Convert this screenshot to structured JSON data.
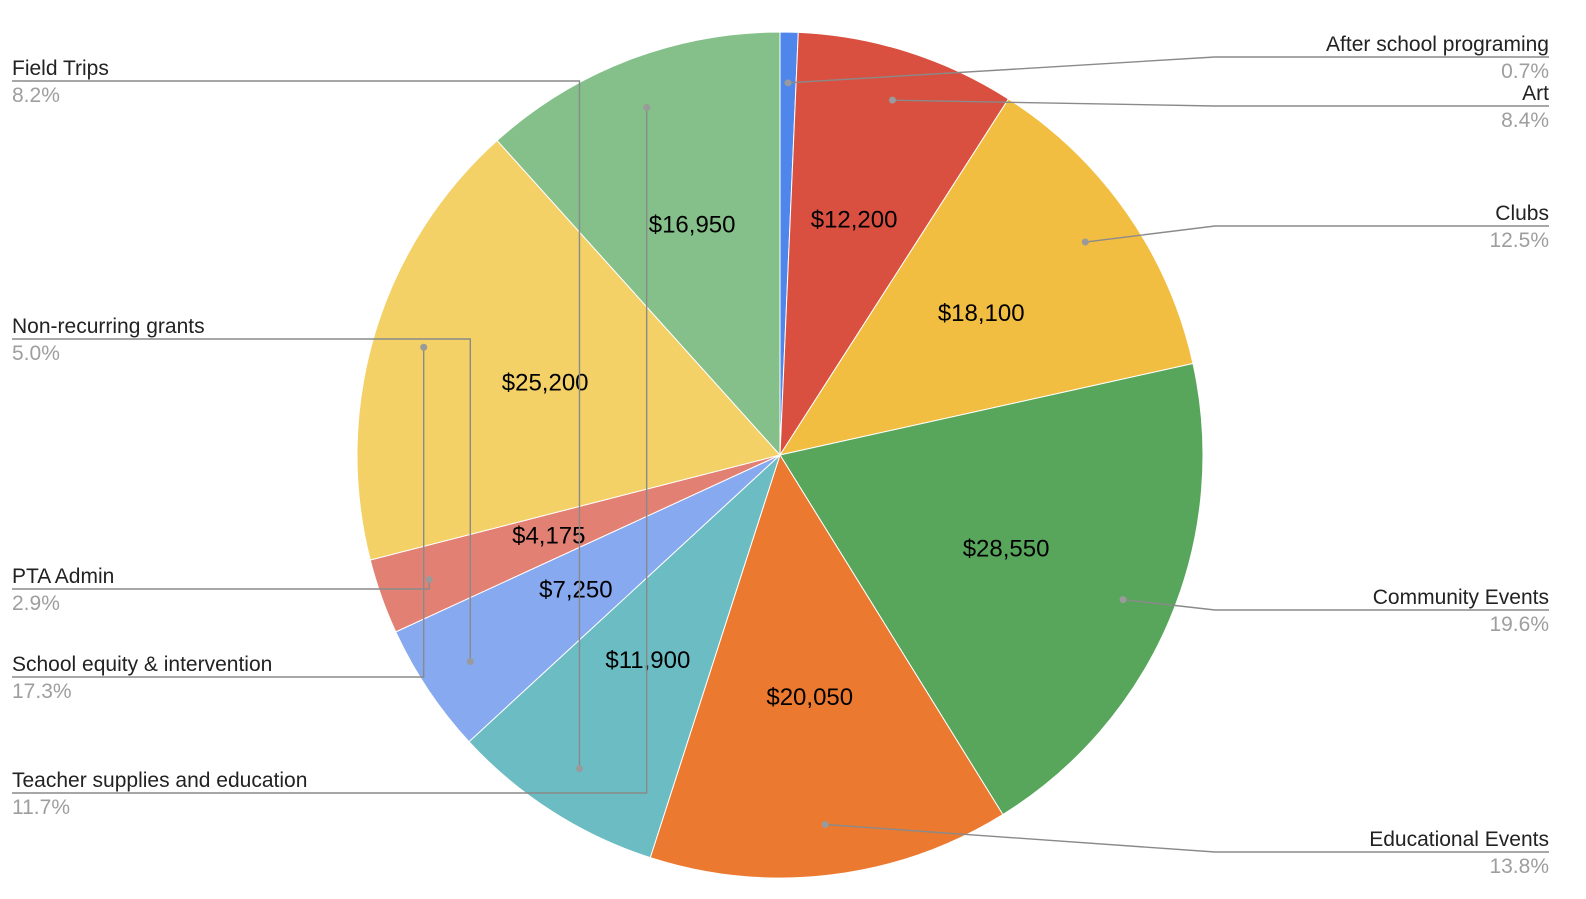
{
  "chart_data": {
    "type": "pie",
    "title": "",
    "slices": [
      {
        "category": "After school programing",
        "value": 1000,
        "value_label": "",
        "percent_label": "0.7%",
        "color": "#4F86EC",
        "side": "right"
      },
      {
        "category": "Art",
        "value": 12200,
        "value_label": "$12,200",
        "percent_label": "8.4%",
        "color": "#D95040",
        "side": "right"
      },
      {
        "category": "Clubs",
        "value": 18100,
        "value_label": "$18,100",
        "percent_label": "12.5%",
        "color": "#F2BE42",
        "side": "right"
      },
      {
        "category": "Community Events",
        "value": 28550,
        "value_label": "$28,550",
        "percent_label": "19.6%",
        "color": "#58A65C",
        "side": "right"
      },
      {
        "category": "Educational Events",
        "value": 20050,
        "value_label": "$20,050",
        "percent_label": "13.8%",
        "color": "#EB7A30",
        "side": "right"
      },
      {
        "category": "Field Trips",
        "value": 11900,
        "value_label": "$11,900",
        "percent_label": "8.2%",
        "color": "#6BBCC3",
        "side": "left"
      },
      {
        "category": "Non-recurring grants",
        "value": 7250,
        "value_label": "$7,250",
        "percent_label": "5.0%",
        "color": "#87A9EF",
        "side": "left"
      },
      {
        "category": "PTA Admin",
        "value": 4175,
        "value_label": "$4,175",
        "percent_label": "2.9%",
        "color": "#E28073",
        "side": "left"
      },
      {
        "category": "School equity & intervention",
        "value": 25200,
        "value_label": "$25,200",
        "percent_label": "17.3%",
        "color": "#F3D166",
        "side": "left"
      },
      {
        "category": "Teacher supplies and education",
        "value": 16950,
        "value_label": "$16,950",
        "percent_label": "11.7%",
        "color": "#85C08A",
        "side": "left"
      }
    ]
  }
}
